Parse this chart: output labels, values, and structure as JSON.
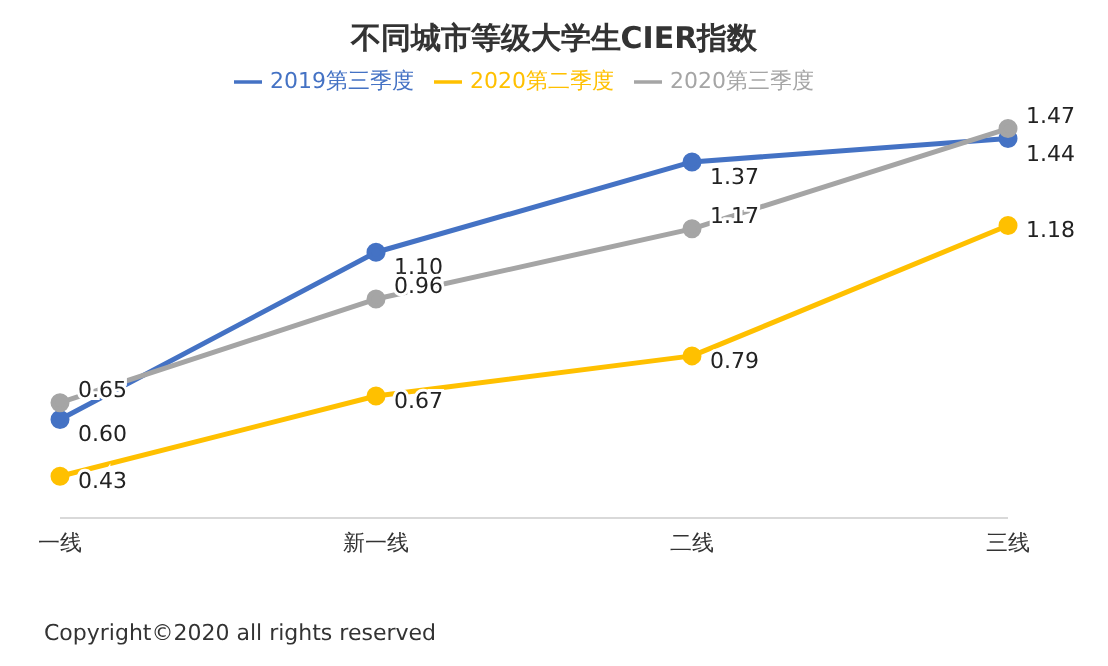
{
  "chart_data": {
    "type": "line",
    "title": "不同城市等级大学生CIER指数",
    "categories": [
      "一线",
      "新一线",
      "二线",
      "三线"
    ],
    "series": [
      {
        "name": "2019第三季度",
        "color": "#4472c4",
        "values": [
          0.6,
          1.1,
          1.37,
          1.44
        ],
        "value_labels": [
          "0.60",
          "1.10",
          "1.37",
          "1.44"
        ]
      },
      {
        "name": "2020第二季度",
        "color": "#ffc000",
        "values": [
          0.43,
          0.67,
          0.79,
          1.18
        ],
        "value_labels": [
          "0.43",
          "0.67",
          "0.79",
          "1.18"
        ]
      },
      {
        "name": "2020第三季度",
        "color": "#a5a5a5",
        "values": [
          0.65,
          0.96,
          1.17,
          1.47
        ],
        "value_labels": [
          "0.65",
          "0.96",
          "1.17",
          "1.47"
        ]
      }
    ],
    "legend": "top",
    "grid": false,
    "marker": "circle",
    "line_style": "solid",
    "annotations": [
      "Copyright©2020 all rights reserved"
    ]
  }
}
